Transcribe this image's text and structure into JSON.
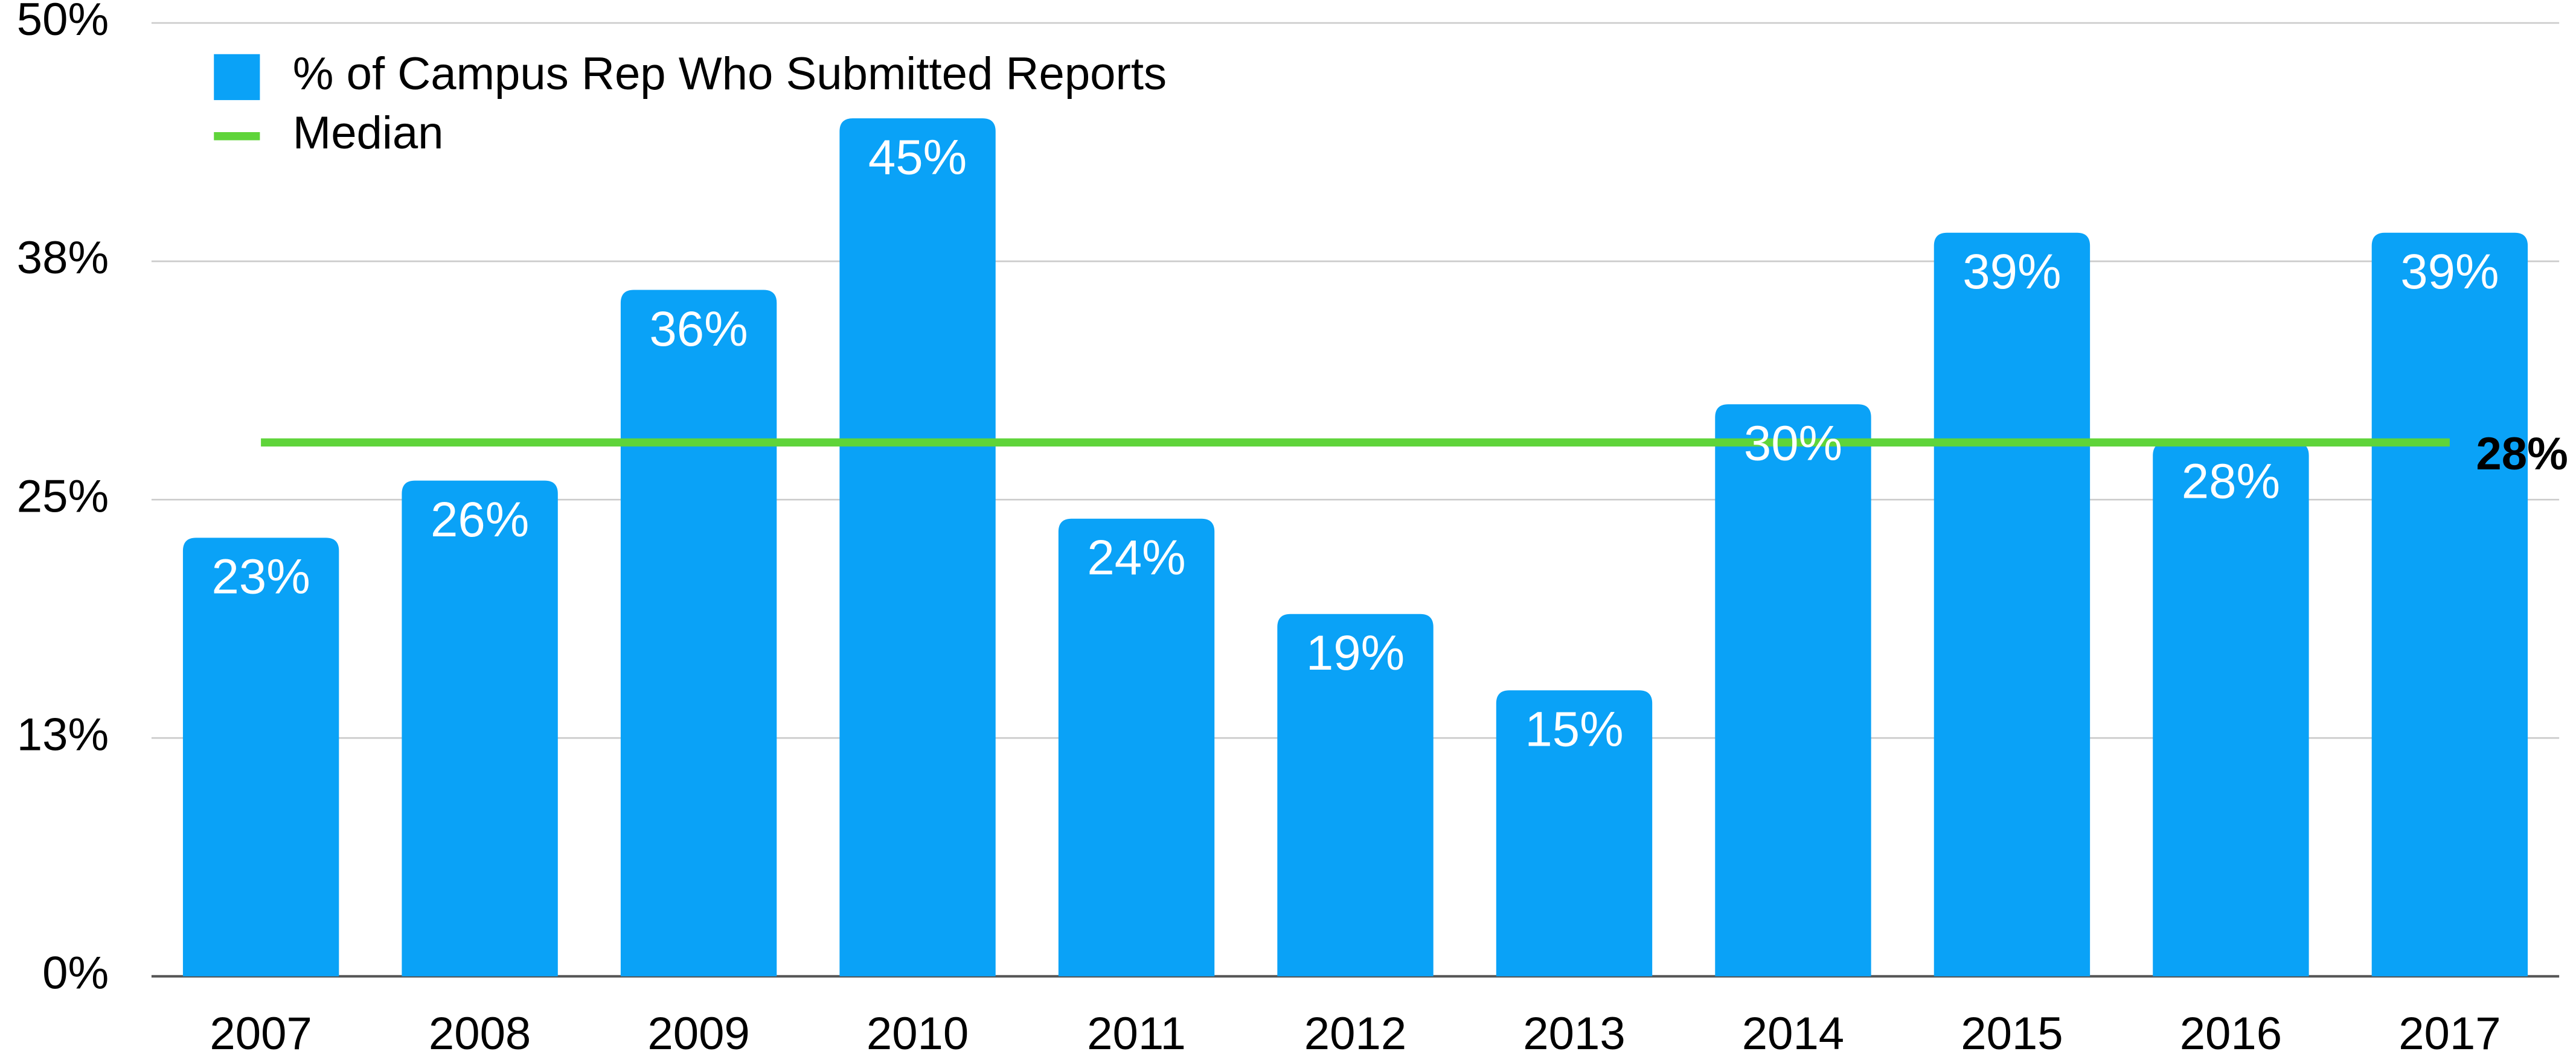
{
  "chart_data": {
    "type": "bar",
    "categories": [
      "2007",
      "2008",
      "2009",
      "2010",
      "2011",
      "2012",
      "2013",
      "2014",
      "2015",
      "2016",
      "2017"
    ],
    "series": [
      {
        "name": "% of Campus Rep Who Submitted Reports",
        "color": "#0aa2f7",
        "values": [
          23,
          26,
          36,
          45,
          24,
          19,
          15,
          30,
          39,
          28,
          39
        ],
        "value_labels": [
          "23%",
          "26%",
          "36%",
          "45%",
          "24%",
          "19%",
          "15%",
          "30%",
          "39%",
          "28%",
          "39%"
        ]
      }
    ],
    "median": {
      "name": "Median",
      "value": 28,
      "label": "28%",
      "color": "#5fd43a"
    },
    "ylim": [
      0,
      50
    ],
    "yticks": [
      {
        "value": 0,
        "label": "0%"
      },
      {
        "value": 12.5,
        "label": "13%"
      },
      {
        "value": 25,
        "label": "25%"
      },
      {
        "value": 37.5,
        "label": "38%"
      },
      {
        "value": 50,
        "label": "50%"
      }
    ],
    "grid": true,
    "legend": "top-left"
  }
}
